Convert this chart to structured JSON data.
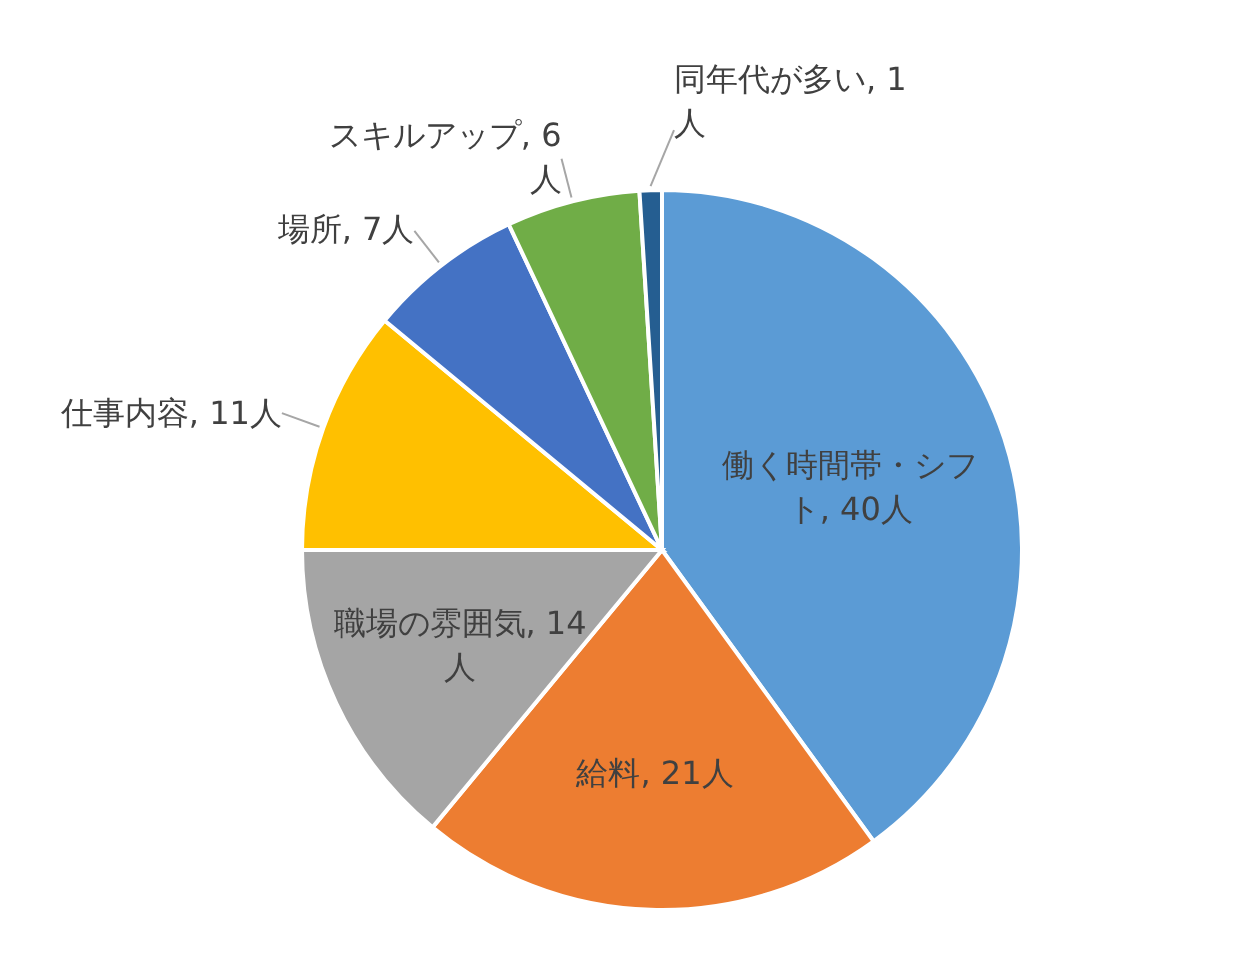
{
  "chart_data": {
    "type": "pie",
    "categories": [
      "働く時間帯・シフト",
      "給料",
      "職場の雰囲気",
      "仕事内容",
      "場所",
      "スキルアップ",
      "同年代が多い"
    ],
    "values": [
      40,
      21,
      14,
      11,
      7,
      6,
      1
    ],
    "value_labels": [
      "40人",
      "21人",
      "14人",
      "11人",
      "7人",
      "6人",
      "1人"
    ],
    "colors": [
      "#5b9bd5",
      "#ed7d31",
      "#a5a5a5",
      "#ffc000",
      "#4472c4",
      "#70ad47",
      "#255e91"
    ]
  }
}
